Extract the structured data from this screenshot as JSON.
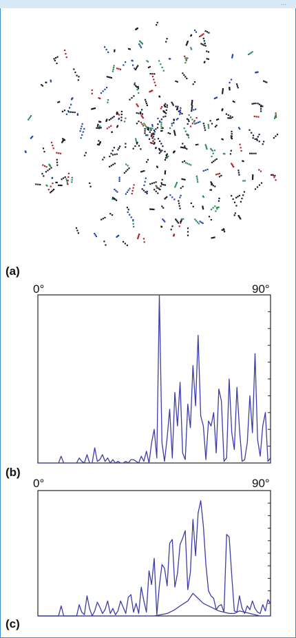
{
  "header": {
    "corner_text": "..."
  },
  "panels": {
    "a": {
      "label": "(a)"
    },
    "b": {
      "label": "(b)",
      "x_start": "0°",
      "x_end": "90°"
    },
    "c": {
      "label": "(c)",
      "x_start": "0°",
      "x_end": "90°"
    }
  },
  "colors": {
    "line": "#3b3ba8",
    "axis": "#222222",
    "frame": "#3a8bd0",
    "dot_main": "#1a1a2a",
    "dot_green": "#2e8b57",
    "dot_red": "#b22222",
    "dot_blue": "#2244aa"
  },
  "chart_data": [
    {
      "type": "line",
      "panel": "b",
      "xlim": [
        0,
        90
      ],
      "ylim": [
        0,
        100
      ],
      "xlabel": "",
      "ylabel": "",
      "x": [
        0,
        2,
        4,
        6,
        8,
        9,
        10,
        11,
        12,
        14,
        15,
        16,
        17,
        18,
        19,
        20,
        21,
        22,
        23,
        24,
        25,
        26,
        27,
        28,
        29,
        30,
        31,
        32,
        33,
        34,
        35,
        36,
        37,
        38,
        39,
        40,
        41,
        42,
        43,
        44,
        45,
        46,
        47,
        48,
        49,
        50,
        51,
        52,
        53,
        54,
        55,
        56,
        57,
        58,
        59,
        60,
        61,
        62,
        63,
        64,
        65,
        66,
        67,
        68,
        69,
        70,
        71,
        72,
        73,
        74,
        75,
        76,
        77,
        78,
        79,
        80,
        81,
        82,
        83,
        84,
        85,
        86,
        87,
        88,
        89,
        90
      ],
      "values": [
        0,
        0,
        0,
        0,
        0,
        4,
        0,
        0,
        0,
        0,
        0,
        3,
        1,
        0,
        5,
        0,
        0,
        9,
        1,
        2,
        5,
        1,
        3,
        0,
        2,
        0,
        1,
        0,
        0,
        1,
        0,
        2,
        2,
        1,
        0,
        4,
        1,
        7,
        0,
        12,
        20,
        3,
        100,
        12,
        1,
        15,
        32,
        3,
        42,
        22,
        48,
        6,
        2,
        35,
        21,
        58,
        34,
        76,
        28,
        22,
        2,
        25,
        22,
        30,
        6,
        44,
        37,
        1,
        3,
        50,
        18,
        8,
        45,
        20,
        1,
        2,
        12,
        40,
        18,
        65,
        14,
        4,
        22,
        30,
        1,
        3
      ]
    },
    {
      "type": "line",
      "panel": "c",
      "xlim": [
        0,
        90
      ],
      "ylim": [
        0,
        100
      ],
      "xlabel": "",
      "ylabel": "",
      "series": [
        {
          "x": [
            0,
            2,
            4,
            6,
            8,
            9,
            10,
            11,
            12,
            14,
            15,
            16,
            17,
            18,
            19,
            20,
            21,
            22,
            23,
            24,
            25,
            26,
            27,
            28,
            29,
            30,
            31,
            32,
            33,
            34,
            35,
            36,
            37,
            38,
            39,
            40,
            41,
            42,
            43,
            44,
            45,
            46,
            47,
            48,
            49,
            50,
            51,
            52,
            53,
            54,
            55,
            56,
            57,
            58,
            59,
            60,
            61,
            62,
            63,
            64,
            65,
            66,
            67,
            68,
            69,
            70,
            71,
            72,
            73,
            74,
            75,
            76,
            77,
            78,
            79,
            80,
            81,
            82,
            83,
            84,
            85,
            86,
            87,
            88,
            89,
            90
          ],
          "values": [
            0,
            0,
            0,
            0,
            0,
            8,
            0,
            0,
            0,
            0,
            0,
            9,
            3,
            1,
            16,
            6,
            0,
            4,
            11,
            7,
            2,
            5,
            12,
            2,
            6,
            1,
            4,
            12,
            7,
            2,
            15,
            17,
            3,
            10,
            2,
            23,
            12,
            3,
            36,
            25,
            46,
            1,
            24,
            41,
            38,
            24,
            58,
            61,
            23,
            34,
            57,
            62,
            68,
            21,
            35,
            77,
            48,
            82,
            92,
            72,
            41,
            20,
            16,
            14,
            5,
            8,
            9,
            3,
            65,
            63,
            32,
            4,
            3,
            16,
            6,
            2,
            8,
            5,
            12,
            6,
            3,
            2,
            9,
            4,
            13,
            10
          ]
        },
        {
          "x": [
            0,
            20,
            30,
            40,
            45,
            50,
            53,
            55,
            58,
            60,
            62,
            64,
            66,
            68,
            70,
            72,
            74,
            76,
            78,
            80,
            82,
            84,
            86,
            88,
            90
          ],
          "values": [
            0,
            0,
            0,
            0,
            0,
            2,
            5,
            8,
            12,
            18,
            14,
            10,
            8,
            6,
            4,
            3,
            2,
            2,
            4,
            3,
            2,
            1,
            0,
            0,
            0
          ]
        }
      ]
    }
  ]
}
